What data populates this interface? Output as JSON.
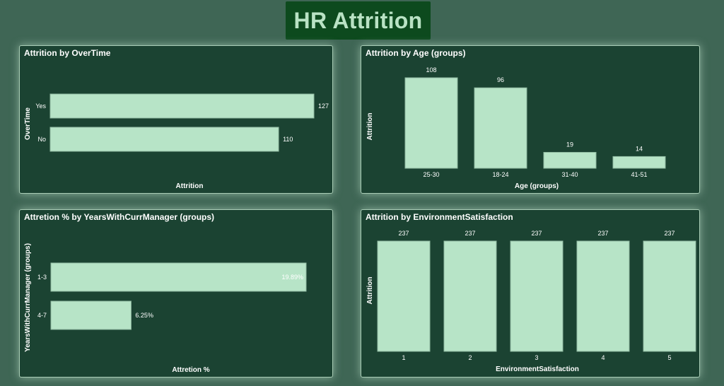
{
  "page": {
    "title": "HR Attrition"
  },
  "colors": {
    "background": "#3f6655",
    "panel": "#1b4332",
    "bar": "#b7e4c7",
    "title_bg": "#0d4a1e",
    "title_text": "#b9e2c4"
  },
  "chart_data": [
    {
      "id": "overtime",
      "type": "bar",
      "orientation": "horizontal",
      "title": "Attrition by OverTime",
      "xlabel": "Attrition",
      "ylabel": "OverTime",
      "categories": [
        "Yes",
        "No"
      ],
      "values": [
        127,
        110
      ],
      "data_labels": [
        "127",
        "110"
      ],
      "xlim": [
        0,
        127
      ],
      "grid": false
    },
    {
      "id": "age",
      "type": "bar",
      "orientation": "vertical",
      "title": "Attrition by Age (groups)",
      "xlabel": "Age (groups)",
      "ylabel": "Attrition",
      "categories": [
        "25-30",
        "18-24",
        "31-40",
        "41-51"
      ],
      "values": [
        108,
        96,
        19,
        14
      ],
      "data_labels": [
        "108",
        "96",
        "19",
        "14"
      ],
      "ylim": [
        0,
        108
      ],
      "grid": false
    },
    {
      "id": "manager",
      "type": "bar",
      "orientation": "horizontal",
      "title": "Attretion % by YearsWithCurrManager (groups)",
      "xlabel": "Attretion %",
      "ylabel": "YearsWithCurrManager (groups)",
      "categories": [
        "1-3",
        "4-7"
      ],
      "values": [
        19.89,
        6.25
      ],
      "data_labels": [
        "19.89%",
        "6.25%"
      ],
      "xlim": [
        0,
        19.89
      ],
      "grid": false
    },
    {
      "id": "env",
      "type": "bar",
      "orientation": "vertical",
      "title": "Attrition by EnvironmentSatisfaction",
      "xlabel": "EnvironmentSatisfaction",
      "ylabel": "Attrition",
      "categories": [
        "1",
        "2",
        "3",
        "4",
        "5"
      ],
      "values": [
        237,
        237,
        237,
        237,
        237
      ],
      "data_labels": [
        "237",
        "237",
        "237",
        "237",
        "237"
      ],
      "ylim": [
        0,
        237
      ],
      "grid": false
    }
  ]
}
